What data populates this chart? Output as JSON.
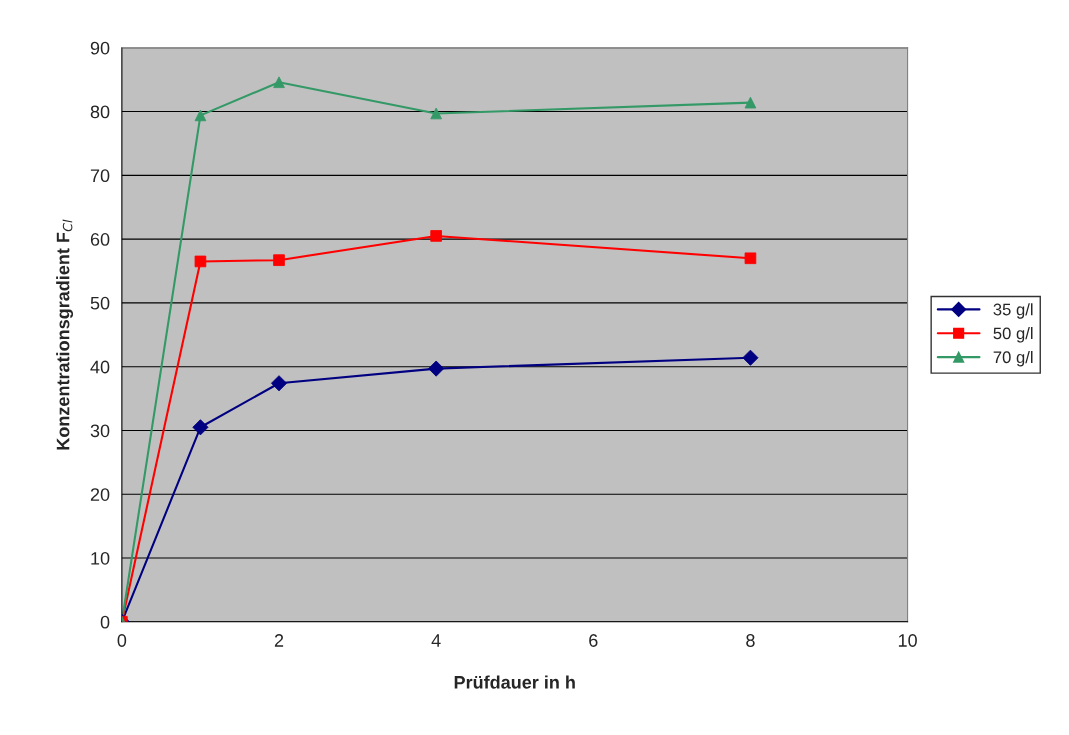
{
  "chart_data": {
    "type": "line",
    "xlabel": "Prüfdauer in h",
    "ylabel": "Konzentrationsgradient F$_{Cl}$",
    "x": [
      0,
      1,
      2,
      4,
      8
    ],
    "series": [
      {
        "name": "35 g/l",
        "color": "#000080",
        "marker": "diamond",
        "values": [
          0,
          30.5,
          37.4,
          39.7,
          41.4
        ]
      },
      {
        "name": "50 g/l",
        "color": "#ff0000",
        "marker": "square",
        "values": [
          0,
          56.5,
          56.7,
          60.5,
          57.0
        ]
      },
      {
        "name": "70 g/l",
        "color": "#339966",
        "marker": "triangle",
        "values": [
          0,
          79.4,
          84.6,
          79.7,
          81.4
        ]
      }
    ],
    "xlim": [
      0,
      10
    ],
    "xticks": [
      0,
      2,
      4,
      6,
      8,
      10
    ],
    "ylim": [
      0,
      90
    ],
    "yticks": [
      0,
      10,
      20,
      30,
      40,
      50,
      60,
      70,
      80,
      90
    ],
    "grid": "y",
    "legend": "right",
    "line_style": "solid"
  }
}
